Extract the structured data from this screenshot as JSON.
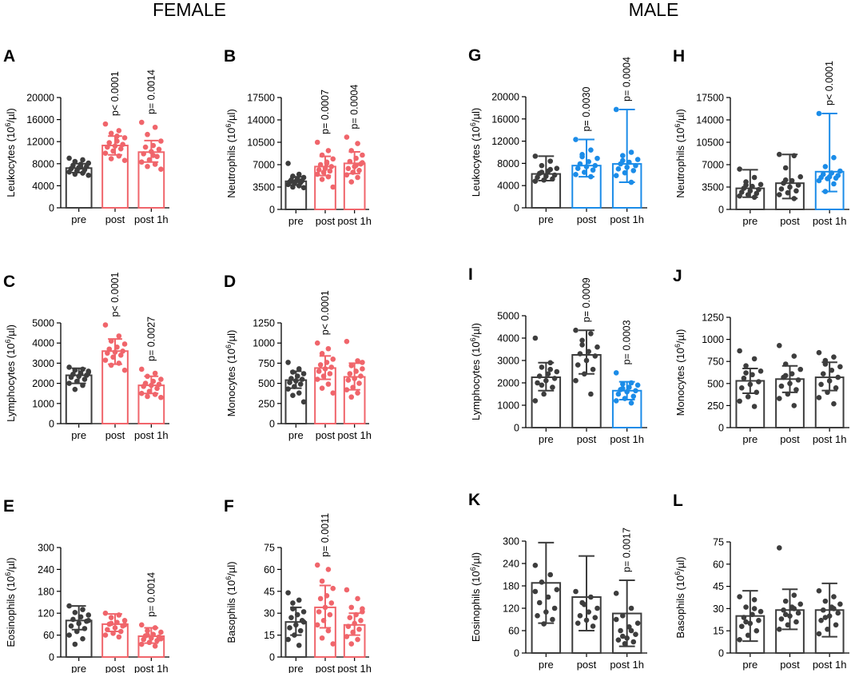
{
  "headers": {
    "female": "FEMALE",
    "male": "MALE"
  },
  "colors": {
    "dark": "#3d3d3d",
    "red": "#f0656b",
    "blue": "#1b8ce8"
  },
  "chart_data": [
    {
      "panel": "A",
      "type": "bar",
      "ylabel": "Leukocytes (10⁶/µl)",
      "categories": [
        "pre",
        "post",
        "post 1h"
      ],
      "ylim": [
        0,
        20000
      ],
      "yticks": [
        0,
        4000,
        8000,
        12000,
        16000,
        20000
      ],
      "values": [
        7200,
        11300,
        10100
      ],
      "err_low": [
        6400,
        9600,
        8300
      ],
      "err_high": [
        8000,
        13000,
        12200
      ],
      "colors": [
        "dark",
        "red",
        "red"
      ],
      "pvalues": [
        "",
        "p< 0.0001",
        "p= 0.0014"
      ],
      "points": [
        [
          9000,
          8700,
          8400,
          8100,
          7900,
          7700,
          7500,
          7300,
          7100,
          6900,
          6700,
          6500,
          6300,
          6100,
          5900,
          7400
        ],
        [
          15200,
          14000,
          13500,
          12700,
          12100,
          11800,
          11500,
          11200,
          11000,
          10700,
          10300,
          9900,
          9400,
          8900,
          8600,
          13000
        ],
        [
          15500,
          14600,
          13300,
          12100,
          11300,
          11000,
          10600,
          10200,
          9800,
          9300,
          8700,
          8300,
          7900,
          7500,
          7000,
          9500
        ]
      ]
    },
    {
      "panel": "B",
      "type": "bar",
      "ylabel": "Neutrophils (10⁶/µl)",
      "categories": [
        "pre",
        "post",
        "post 1h"
      ],
      "ylim": [
        0,
        17500
      ],
      "yticks": [
        0,
        3500,
        7000,
        10500,
        14000,
        17500
      ],
      "values": [
        4400,
        6700,
        7200
      ],
      "err_low": [
        3800,
        5300,
        5600
      ],
      "err_high": [
        5100,
        8300,
        9000
      ],
      "colors": [
        "dark",
        "red",
        "red"
      ],
      "pvalues": [
        "",
        "p= 0.0007",
        "p= 0.0004"
      ],
      "points": [
        [
          7200,
          5500,
          5200,
          5000,
          4800,
          4600,
          4500,
          4400,
          4300,
          4200,
          4100,
          3900,
          3700,
          3500,
          3400,
          4700
        ],
        [
          10500,
          9200,
          8500,
          7900,
          7400,
          7000,
          6700,
          6400,
          6200,
          6000,
          5800,
          5500,
          5100,
          4700,
          3500,
          7200
        ],
        [
          11300,
          10300,
          9200,
          8500,
          8000,
          7500,
          7100,
          6700,
          6400,
          6100,
          5800,
          5400,
          5000,
          4300,
          7300,
          6900
        ]
      ]
    },
    {
      "panel": "C",
      "type": "bar",
      "ylabel": "Lymphocytes (10⁶/µl)",
      "categories": [
        "pre",
        "post",
        "post 1h"
      ],
      "ylim": [
        0,
        5000
      ],
      "yticks": [
        0,
        1000,
        2000,
        3000,
        4000,
        5000
      ],
      "values": [
        2400,
        3600,
        1900
      ],
      "err_low": [
        2000,
        2950,
        1500
      ],
      "err_high": [
        2750,
        4200,
        2350
      ],
      "colors": [
        "dark",
        "red",
        "red"
      ],
      "pvalues": [
        "",
        "p< 0.0001",
        "p= 0.0027"
      ],
      "points": [
        [
          2800,
          2700,
          2650,
          2600,
          2500,
          2450,
          2400,
          2350,
          2300,
          2200,
          2100,
          2000,
          1900,
          1700,
          2550
        ],
        [
          4900,
          4350,
          4100,
          3950,
          3800,
          3700,
          3600,
          3550,
          3500,
          3400,
          3300,
          3150,
          3000,
          2900,
          2650
        ],
        [
          2700,
          2500,
          2350,
          2200,
          2100,
          2000,
          1950,
          1900,
          1850,
          1750,
          1600,
          1500,
          1450,
          1350,
          1300
        ]
      ]
    },
    {
      "panel": "D",
      "type": "bar",
      "ylabel": "Monocytes (10⁶/µl)",
      "categories": [
        "pre",
        "post",
        "post 1h"
      ],
      "ylim": [
        0,
        1250
      ],
      "yticks": [
        0,
        250,
        500,
        750,
        1000,
        1250
      ],
      "values": [
        540,
        690,
        580
      ],
      "err_low": [
        440,
        550,
        420
      ],
      "err_high": [
        650,
        840,
        750
      ],
      "colors": [
        "dark",
        "red",
        "red"
      ],
      "pvalues": [
        "",
        "p< 0.0001",
        ""
      ],
      "points": [
        [
          760,
          680,
          640,
          620,
          590,
          560,
          550,
          530,
          510,
          490,
          460,
          430,
          380,
          350,
          270
        ],
        [
          1000,
          930,
          870,
          800,
          760,
          730,
          700,
          680,
          650,
          620,
          590,
          550,
          490,
          440,
          380
        ],
        [
          1020,
          780,
          720,
          680,
          650,
          620,
          590,
          560,
          540,
          500,
          450,
          420,
          380,
          330,
          760
        ]
      ]
    },
    {
      "panel": "E",
      "type": "bar",
      "ylabel": "Eosinophils (10⁶/µl)",
      "categories": [
        "pre",
        "post",
        "post 1h"
      ],
      "ylim": [
        0,
        300
      ],
      "yticks": [
        0,
        60,
        120,
        180,
        240,
        300
      ],
      "values": [
        100,
        90,
        57
      ],
      "err_low": [
        75,
        70,
        38
      ],
      "err_high": [
        140,
        118,
        80
      ],
      "colors": [
        "dark",
        "red",
        "red"
      ],
      "pvalues": [
        "",
        "",
        "p= 0.0014"
      ],
      "points": [
        [
          140,
          130,
          122,
          115,
          110,
          103,
          98,
          92,
          85,
          78,
          70,
          60,
          50,
          35,
          100
        ],
        [
          120,
          115,
          108,
          100,
          95,
          90,
          85,
          80,
          75,
          70,
          65,
          60,
          55,
          92,
          88
        ],
        [
          88,
          80,
          72,
          68,
          62,
          58,
          55,
          52,
          48,
          45,
          40,
          35,
          30,
          60,
          50
        ]
      ]
    },
    {
      "panel": "F",
      "type": "bar",
      "ylabel": "Basophils (10⁶/µl)",
      "categories": [
        "pre",
        "post",
        "post 1h"
      ],
      "ylim": [
        0,
        75
      ],
      "yticks": [
        0,
        15,
        30,
        45,
        60,
        75
      ],
      "values": [
        24,
        34,
        22
      ],
      "err_low": [
        15,
        20,
        15
      ],
      "err_high": [
        34,
        49,
        30
      ],
      "colors": [
        "dark",
        "red",
        "red"
      ],
      "pvalues": [
        "",
        "p= 0.0011",
        ""
      ],
      "points": [
        [
          44,
          39,
          37,
          31,
          29,
          27,
          25,
          22,
          20,
          18,
          15,
          12,
          8,
          33,
          24
        ],
        [
          63,
          60,
          52,
          47,
          42,
          40,
          37,
          34,
          31,
          29,
          25,
          22,
          18,
          13,
          9
        ],
        [
          46,
          40,
          34,
          31,
          29,
          27,
          25,
          23,
          21,
          19,
          17,
          14,
          12,
          9,
          33
        ]
      ]
    },
    {
      "panel": "G",
      "type": "bar",
      "ylabel": "Leukocytes (10⁶/µl)",
      "categories": [
        "pre",
        "post",
        "post 1h"
      ],
      "ylim": [
        0,
        20000
      ],
      "yticks": [
        0,
        4000,
        8000,
        12000,
        16000,
        20000
      ],
      "values": [
        6100,
        7600,
        7900
      ],
      "err_low": [
        4900,
        5600,
        4600
      ],
      "err_high": [
        9300,
        12300,
        17700
      ],
      "colors": [
        "dark",
        "blue",
        "blue"
      ],
      "pvalues": [
        "",
        "p= 0.0030",
        "p= 0.0004"
      ],
      "points": [
        [
          9300,
          8400,
          7600,
          7100,
          6600,
          6200,
          5900,
          5700,
          5500,
          5200,
          5000,
          4800,
          6900,
          6400
        ],
        [
          12300,
          10400,
          9600,
          8900,
          8300,
          7900,
          7600,
          7400,
          7100,
          6800,
          6400,
          6000,
          5600,
          9200
        ],
        [
          17700,
          10000,
          9400,
          8700,
          8200,
          7900,
          7600,
          7300,
          7000,
          6700,
          6300,
          5800,
          4600,
          8500
        ]
      ]
    },
    {
      "panel": "H",
      "type": "bar",
      "ylabel": "Neutrophils (10⁶/µl)",
      "categories": [
        "pre",
        "post",
        "post 1h"
      ],
      "ylim": [
        0,
        17500
      ],
      "yticks": [
        0,
        3500,
        7000,
        10500,
        14000,
        17500
      ],
      "values": [
        3300,
        4100,
        5900
      ],
      "err_low": [
        1900,
        1700,
        2800
      ],
      "err_high": [
        6200,
        8600,
        15000
      ],
      "colors": [
        "dark",
        "dark",
        "blue"
      ],
      "pvalues": [
        "",
        "",
        "p< 0.0001"
      ],
      "points": [
        [
          6300,
          5000,
          4300,
          3900,
          3600,
          3300,
          3100,
          2900,
          2700,
          2500,
          2300,
          2100,
          1900,
          3800
        ],
        [
          8600,
          8400,
          6500,
          5100,
          4500,
          4100,
          3800,
          3500,
          3200,
          2900,
          2600,
          2300,
          1700,
          4600
        ],
        [
          15000,
          8100,
          6700,
          6000,
          5700,
          5500,
          5300,
          5100,
          5000,
          4900,
          4800,
          4500,
          4000,
          2800
        ]
      ]
    },
    {
      "panel": "I",
      "type": "bar",
      "ylabel": "Lymphocytes (10⁶/µl)",
      "categories": [
        "pre",
        "post",
        "post 1h"
      ],
      "ylim": [
        0,
        5000
      ],
      "yticks": [
        0,
        1000,
        2000,
        3000,
        4000,
        5000
      ],
      "values": [
        2250,
        3250,
        1650
      ],
      "err_low": [
        1650,
        2400,
        1250
      ],
      "err_high": [
        2900,
        4350,
        2050
      ],
      "colors": [
        "dark",
        "dark",
        "blue"
      ],
      "pvalues": [
        "",
        "p= 0.0009",
        "p= 0.0003"
      ],
      "points": [
        [
          4000,
          2900,
          2700,
          2500,
          2400,
          2300,
          2200,
          2100,
          2000,
          1800,
          1500,
          1200,
          2600,
          1900
        ],
        [
          4350,
          4200,
          3900,
          3600,
          3400,
          3300,
          3200,
          3000,
          2800,
          2600,
          2400,
          2100,
          1500,
          3700
        ],
        [
          2450,
          2000,
          1950,
          1900,
          1800,
          1700,
          1650,
          1600,
          1500,
          1400,
          1300,
          1200,
          1100,
          1750
        ]
      ]
    },
    {
      "panel": "J",
      "type": "bar",
      "ylabel": "Monocytes (10⁶/µl)",
      "categories": [
        "pre",
        "post",
        "post 1h"
      ],
      "ylim": [
        0,
        1250
      ],
      "yticks": [
        0,
        250,
        500,
        750,
        1000,
        1250
      ],
      "values": [
        530,
        550,
        570
      ],
      "err_low": [
        390,
        400,
        420
      ],
      "err_high": [
        670,
        700,
        740
      ],
      "colors": [
        "dark",
        "dark",
        "dark"
      ],
      "pvalues": [
        "",
        "",
        ""
      ],
      "points": [
        [
          870,
          780,
          700,
          640,
          600,
          560,
          520,
          490,
          450,
          400,
          350,
          300,
          240,
          620
        ],
        [
          930,
          810,
          720,
          660,
          610,
          570,
          540,
          500,
          470,
          430,
          380,
          330,
          250,
          590
        ],
        [
          850,
          800,
          760,
          690,
          650,
          610,
          570,
          530,
          490,
          450,
          400,
          340,
          270,
          720
        ]
      ]
    },
    {
      "panel": "K",
      "type": "bar",
      "ylabel": "Eosinophils (10⁶/µl)",
      "categories": [
        "pre",
        "post",
        "post 1h"
      ],
      "ylim": [
        0,
        300
      ],
      "yticks": [
        0,
        60,
        120,
        180,
        240,
        300
      ],
      "values": [
        188,
        150,
        106
      ],
      "err_low": [
        80,
        60,
        18
      ],
      "err_high": [
        296,
        260,
        195
      ],
      "colors": [
        "dark",
        "dark",
        "dark"
      ],
      "pvalues": [
        "",
        "",
        "p= 0.0017"
      ],
      "points": [
        [
          235,
          210,
          190,
          170,
          150,
          135,
          120,
          110,
          100,
          90,
          78,
          165
        ],
        [
          165,
          150,
          135,
          120,
          110,
          100,
          95,
          88,
          80,
          72,
          130
        ],
        [
          160,
          120,
          100,
          80,
          70,
          60,
          50,
          40,
          35,
          30,
          25,
          90,
          60,
          45
        ]
      ]
    },
    {
      "panel": "L",
      "type": "bar",
      "ylabel": "Basophils (10⁶/µl)",
      "categories": [
        "pre",
        "post",
        "post 1h"
      ],
      "ylim": [
        0,
        75
      ],
      "yticks": [
        0,
        15,
        30,
        45,
        60,
        75
      ],
      "values": [
        25,
        29,
        29
      ],
      "err_low": [
        8,
        16,
        11
      ],
      "err_high": [
        42,
        43,
        47
      ],
      "colors": [
        "dark",
        "dark",
        "dark"
      ],
      "pvalues": [
        "",
        "",
        ""
      ],
      "points": [
        [
          38,
          36,
          31,
          28,
          26,
          24,
          22,
          20,
          18,
          15,
          12,
          9,
          30,
          21
        ],
        [
          71,
          39,
          35,
          33,
          31,
          29,
          27,
          25,
          23,
          21,
          19,
          16,
          30,
          26
        ],
        [
          42,
          38,
          35,
          33,
          31,
          29,
          27,
          25,
          22,
          19,
          16,
          13,
          30,
          24
        ]
      ]
    }
  ]
}
